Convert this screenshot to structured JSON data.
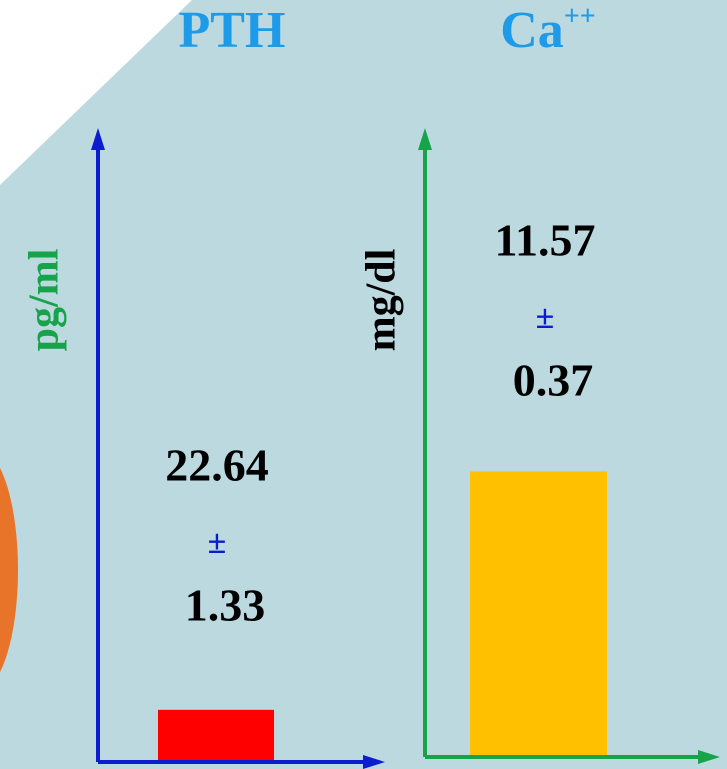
{
  "chart_data": [
    {
      "type": "bar",
      "title": "PTH",
      "y_label": "pg/ml",
      "y_label_color": "#17a34a",
      "axis_color": "#0a1ecf",
      "values": [
        22.64
      ],
      "errors": [
        1.33
      ],
      "error_symbol": "±",
      "color": "#ff0000",
      "ylim": [
        0,
        270
      ]
    },
    {
      "type": "bar",
      "title": "Ca++",
      "y_label": "mg/dl",
      "y_label_color": "#000000",
      "axis_color": "#17a34a",
      "values": [
        11.57
      ],
      "errors": [
        0.37
      ],
      "error_symbol": "±",
      "color": "#ffc000",
      "ylim": [
        0,
        25
      ]
    }
  ]
}
